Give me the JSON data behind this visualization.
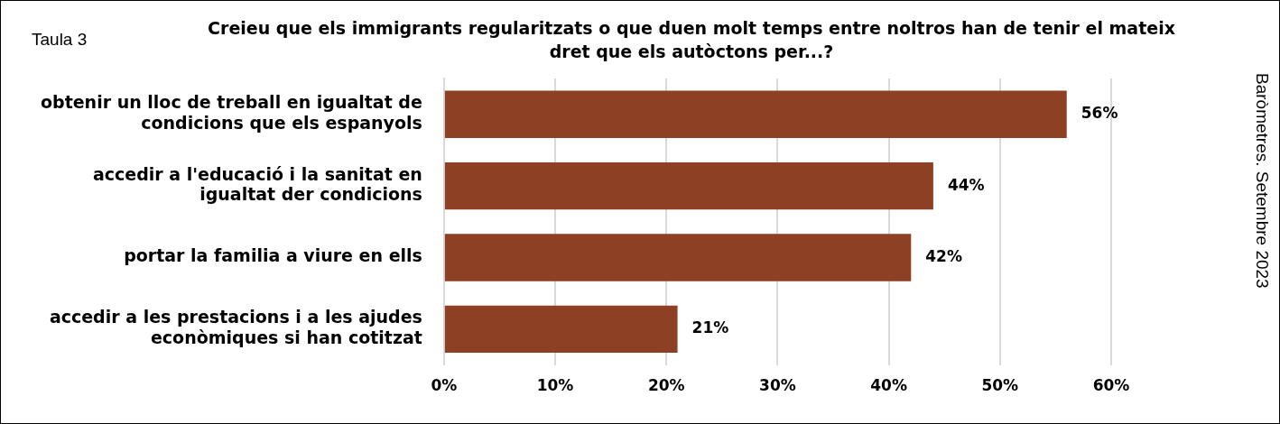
{
  "chart_data": {
    "type": "bar",
    "orientation": "horizontal",
    "title": "Creieu que els immigrants regularitzats o que duen molt temps entre noltros han de tenir el mateix dret que els autòctons per...?",
    "categories": [
      "obtenir un lloc de treball en igualtat de condicions que els espanyols",
      "accedir a l'educació i la sanitat en igualtat der condicions",
      "portar la familia a viure en ells",
      "accedir a les prestacions i a les ajudes econòmiques si han cotitzat"
    ],
    "values": [
      56,
      44,
      42,
      21
    ],
    "value_labels": [
      "56%",
      "44%",
      "42%",
      "21%"
    ],
    "color": "#8e4025",
    "xlim": [
      0,
      60
    ],
    "xticks": [
      {
        "value": 0,
        "label": "0%"
      },
      {
        "value": 10,
        "label": "10%"
      },
      {
        "value": 20,
        "label": "20%"
      },
      {
        "value": 30,
        "label": "30%"
      },
      {
        "value": 40,
        "label": "40%"
      },
      {
        "value": 50,
        "label": "50%"
      },
      {
        "value": 60,
        "label": "60%"
      }
    ],
    "grid": "x",
    "legend": false,
    "annotations": [
      "Taula 3",
      "Baròmetres. Setembre 2023"
    ]
  }
}
